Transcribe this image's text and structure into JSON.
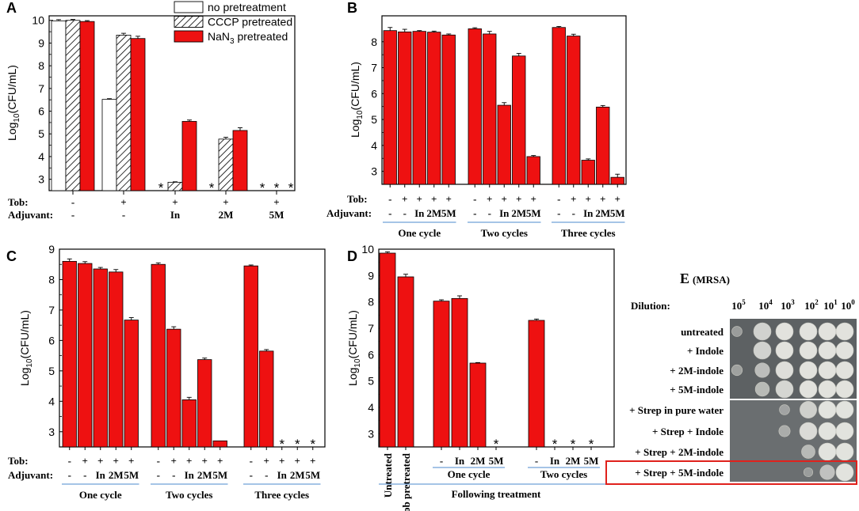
{
  "colors": {
    "red": "#ee1111",
    "axis": "#000000",
    "rule": "#6fa0d8",
    "hatch_bg": "#ffffff",
    "plate_bg": "#666a6c"
  },
  "chart_data": [
    {
      "id": "A",
      "type": "bar",
      "panel_label": "A",
      "ylabel": "Log10(CFU/mL)",
      "ylim": [
        2.5,
        10.2
      ],
      "yticks": [
        "3",
        "4",
        "5",
        "6",
        "7",
        "8",
        "9",
        "10"
      ],
      "legend": [
        "no pretreatment",
        "CCCP pretreated",
        "NaN3 pretreated"
      ],
      "row_labels": [
        "Tob:",
        "Adjuvant:"
      ],
      "groups": [
        {
          "tob": "-",
          "adj": "-"
        },
        {
          "tob": "+",
          "adj": "-"
        },
        {
          "tob": "+",
          "adj": "In"
        },
        {
          "tob": "+",
          "adj": "2M"
        },
        {
          "tob": "+",
          "adj": "5M"
        }
      ],
      "series": [
        {
          "name": "no pretreatment",
          "values": [
            9.98,
            6.52,
            null,
            null,
            null
          ]
        },
        {
          "name": "CCCP pretreated",
          "values": [
            10.0,
            9.35,
            2.87,
            4.77,
            null
          ]
        },
        {
          "name": "NaN3 pretreated",
          "values": [
            9.95,
            9.2,
            5.55,
            5.15,
            null
          ]
        }
      ],
      "errors": [
        [
          0.05,
          0.03,
          0,
          0,
          0
        ],
        [
          0.04,
          0.08,
          0.02,
          0.08,
          0
        ],
        [
          0.04,
          0.1,
          0.06,
          0.12,
          0
        ]
      ],
      "annotation": "*"
    },
    {
      "id": "B",
      "type": "bar",
      "panel_label": "B",
      "ylabel": "Log10(CFU/mL)",
      "ylim": [
        2.5,
        9.0
      ],
      "yticks": [
        "3",
        "4",
        "5",
        "6",
        "7",
        "8"
      ],
      "row_labels": [
        "Tob:",
        "Adjuvant:"
      ],
      "tob": [
        "-",
        "+",
        "+",
        "+",
        "+"
      ],
      "adjuvant": [
        "-",
        "-",
        "In",
        "2M",
        "5M"
      ],
      "cycles": [
        "One cycle",
        "Two cycles",
        "Three cycles"
      ],
      "values": [
        [
          8.43,
          8.38,
          8.4,
          8.37,
          8.26
        ],
        [
          8.5,
          8.3,
          5.55,
          7.45,
          3.57
        ],
        [
          8.55,
          8.22,
          3.43,
          5.48,
          2.77
        ]
      ],
      "errors": [
        [
          0.12,
          0.1,
          0.03,
          0.04,
          0.04
        ],
        [
          0.04,
          0.1,
          0.1,
          0.1,
          0.04
        ],
        [
          0.04,
          0.07,
          0.05,
          0.06,
          0.12
        ]
      ]
    },
    {
      "id": "C",
      "type": "bar",
      "panel_label": "C",
      "ylabel": "Log10(CFU/mL)",
      "ylim": [
        2.5,
        9.0
      ],
      "yticks": [
        "3",
        "4",
        "5",
        "6",
        "7",
        "8",
        "9"
      ],
      "row_labels": [
        "Tob:",
        "Adjuvant:"
      ],
      "tob": [
        "-",
        "+",
        "+",
        "+",
        "+"
      ],
      "adjuvant": [
        "-",
        "-",
        "In",
        "2M",
        "5M"
      ],
      "cycles": [
        "One cycle",
        "Two cycles",
        "Three cycles"
      ],
      "values": [
        [
          8.6,
          8.53,
          8.35,
          8.25,
          6.67
        ],
        [
          8.5,
          6.37,
          4.05,
          5.37,
          2.7
        ],
        [
          8.45,
          5.65,
          null,
          null,
          null
        ]
      ],
      "errors": [
        [
          0.08,
          0.06,
          0.05,
          0.08,
          0.08
        ],
        [
          0.05,
          0.08,
          0.08,
          0.05,
          0
        ],
        [
          0.03,
          0.05,
          0,
          0,
          0
        ]
      ],
      "annotation": "*"
    },
    {
      "id": "D",
      "type": "bar",
      "panel_label": "D",
      "ylabel": "Log10(CFU/mL)",
      "ylim": [
        2.5,
        10.0
      ],
      "yticks": [
        "3",
        "4",
        "5",
        "6",
        "7",
        "8",
        "9",
        "10"
      ],
      "categories": [
        "Untreated",
        "Tob pretreated",
        "-",
        "In",
        "2M",
        "5M",
        "-",
        "In",
        "2M",
        "5M"
      ],
      "values": [
        9.85,
        8.95,
        8.03,
        8.13,
        5.68,
        null,
        7.3,
        null,
        null,
        null
      ],
      "errors": [
        0.05,
        0.1,
        0.05,
        0.1,
        0.02,
        0,
        0.05,
        0,
        0,
        0
      ],
      "subgroups": [
        "One cycle",
        "Two cycles"
      ],
      "xlabel": "Following treatment",
      "annotation": "*"
    }
  ],
  "panel_e": {
    "panel_label": "E",
    "strain": "(MRSA)",
    "dilution_label": "Dilution:",
    "dilutions": [
      {
        "base": "10",
        "exp": "5"
      },
      {
        "base": "10",
        "exp": "4"
      },
      {
        "base": "10",
        "exp": "3"
      },
      {
        "base": "10",
        "exp": "2"
      },
      {
        "base": "10",
        "exp": "1"
      },
      {
        "base": "10",
        "exp": "0"
      }
    ],
    "rows": [
      "untreated",
      "+ Indole",
      "+ 2M-indole",
      "+ 5M-indole",
      "+ Strep in pure water",
      "+ Strep + Indole",
      "+ Strep + 2M-indole",
      "+ Strep + 5M-indole"
    ],
    "growth": [
      [
        0.15,
        0.8,
        1,
        1,
        1,
        1
      ],
      [
        0,
        0.8,
        1,
        1,
        1,
        1
      ],
      [
        0.2,
        0.55,
        0.95,
        1,
        1,
        1
      ],
      [
        0,
        0.5,
        0.85,
        1,
        1,
        1
      ],
      [
        0,
        0,
        0.15,
        0.75,
        1,
        1
      ],
      [
        0,
        0,
        0.25,
        0.9,
        1,
        1
      ],
      [
        0,
        0,
        0,
        0.45,
        1,
        1
      ],
      [
        0,
        0,
        0,
        0.05,
        0.55,
        1
      ]
    ],
    "highlight_row": 7,
    "highlight_color": "#e0211c"
  }
}
